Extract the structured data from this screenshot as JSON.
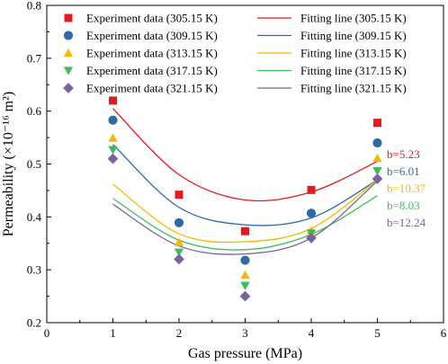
{
  "chart_data": {
    "type": "scatter",
    "xlabel": "Gas pressure (MPa)",
    "ylabel": "Permeability (×10⁻¹⁶ m²)",
    "xlim": [
      0,
      6
    ],
    "ylim": [
      0.2,
      0.8
    ],
    "xticks": [
      "0",
      "1",
      "2",
      "3",
      "4",
      "5",
      "6"
    ],
    "yticks": [
      "0.2",
      "0.3",
      "0.4",
      "0.5",
      "0.6",
      "0.7",
      "0.8"
    ],
    "x": [
      1,
      2,
      3,
      4,
      5
    ],
    "legend_position": "top",
    "series": [
      {
        "name": "Experiment data (305.15 K)",
        "fit_name": "Fitting line (305.15 K)",
        "color": "#e41a1c",
        "marker": "square",
        "values": [
          0.62,
          0.442,
          0.373,
          0.451,
          0.578
        ],
        "fit": [
          0.605,
          0.48,
          0.432,
          0.447,
          0.505
        ],
        "annotation": "b=5.23"
      },
      {
        "name": "Experiment data (309.15 K)",
        "fit_name": "Fitting line (309.15 K)",
        "color": "#2e6aa8",
        "marker": "circle",
        "values": [
          0.583,
          0.389,
          0.318,
          0.407,
          0.54
        ],
        "fit": [
          0.537,
          0.418,
          0.385,
          0.398,
          0.47
        ],
        "annotation": "b=6.01"
      },
      {
        "name": "Experiment data (313.15 K)",
        "fit_name": "Fitting line (313.15 K)",
        "color": "#f5b800",
        "marker": "triangle-up",
        "values": [
          0.549,
          0.352,
          0.29,
          0.374,
          0.511
        ],
        "fit": [
          0.462,
          0.368,
          0.353,
          0.378,
          0.47
        ],
        "annotation": "b=10.37"
      },
      {
        "name": "Experiment data (317.15 K)",
        "fit_name": "Fitting line (317.15 K)",
        "color": "#3dbb5f",
        "marker": "triangle-down",
        "values": [
          0.527,
          0.333,
          0.27,
          0.369,
          0.487
        ],
        "fit": [
          0.435,
          0.356,
          0.338,
          0.367,
          0.44
        ],
        "annotation": "b=8.03"
      },
      {
        "name": "Experiment data (321.15 K)",
        "fit_name": "Fitting line (321.15 K)",
        "color": "#7a62a0",
        "marker": "diamond",
        "values": [
          0.51,
          0.32,
          0.25,
          0.36,
          0.472
        ],
        "fit": [
          0.424,
          0.345,
          0.33,
          0.36,
          0.468
        ],
        "annotation": "b=12.24"
      }
    ]
  }
}
